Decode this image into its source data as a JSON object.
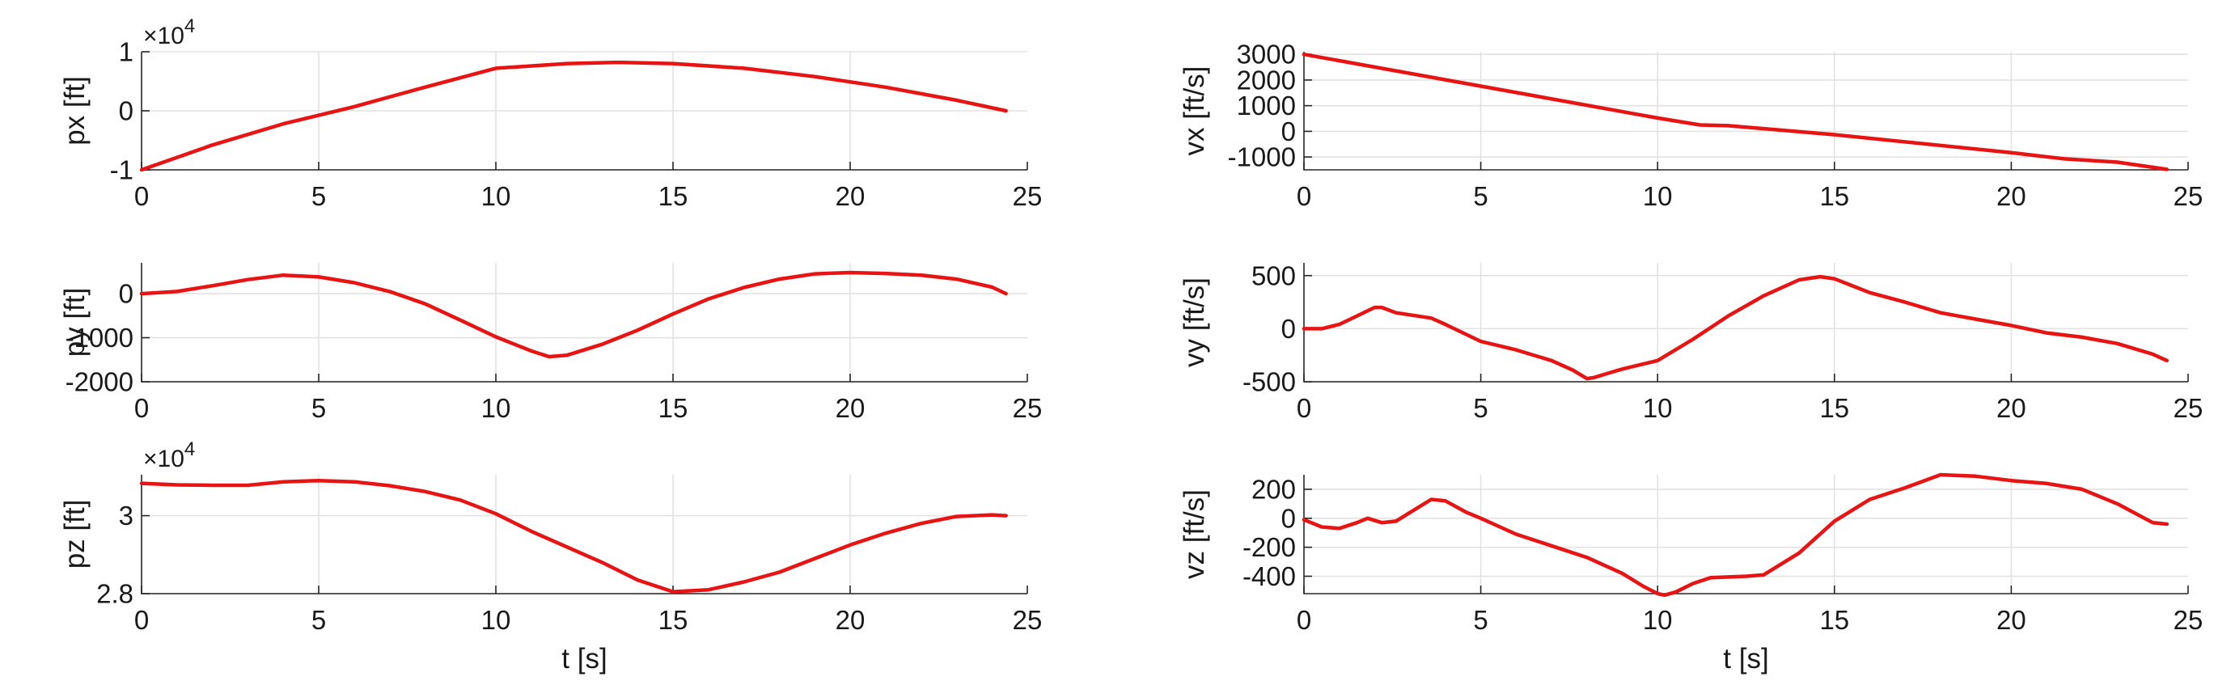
{
  "series_color": "#e81414",
  "chart_data": [
    {
      "type": "line",
      "ylabel": "px [ft]",
      "xlabel": "",
      "y_multiplier": "×10",
      "y_multiplier_exp": "4",
      "xlim": [
        0,
        25
      ],
      "ylim": [
        -1,
        1
      ],
      "xticks": [
        0,
        5,
        10,
        15,
        20,
        25
      ],
      "xtick_labels": [
        "0",
        "5",
        "10",
        "15",
        "20",
        "25"
      ],
      "yticks": [
        -1,
        0,
        1
      ],
      "ytick_labels": [
        "-1",
        "0",
        "1"
      ],
      "grid": true,
      "series": [
        {
          "x": [
            0,
            2,
            4,
            6,
            8,
            10,
            12,
            13.5,
            15,
            17,
            19,
            21,
            23,
            24.4
          ],
          "y": [
            -1,
            -0.58,
            -0.22,
            0.07,
            0.4,
            0.72,
            0.8,
            0.82,
            0.8,
            0.72,
            0.58,
            0.4,
            0.18,
            0
          ]
        }
      ]
    },
    {
      "type": "line",
      "ylabel": "py [ft]",
      "xlabel": "",
      "xlim": [
        0,
        25
      ],
      "ylim": [
        -2000,
        700
      ],
      "xticks": [
        0,
        5,
        10,
        15,
        20,
        25
      ],
      "xtick_labels": [
        "0",
        "5",
        "10",
        "15",
        "20",
        "25"
      ],
      "yticks": [
        -2000,
        -1000,
        0
      ],
      "ytick_labels": [
        "-2000",
        "-1000",
        "0"
      ],
      "grid": true,
      "series": [
        {
          "x": [
            0,
            1,
            2,
            3,
            4,
            5,
            6,
            7,
            8,
            9,
            10,
            11,
            11.5,
            12,
            13,
            14,
            15,
            16,
            17,
            18,
            19,
            20,
            21,
            22,
            23,
            24,
            24.4
          ],
          "y": [
            0,
            50,
            180,
            320,
            420,
            380,
            250,
            50,
            -230,
            -600,
            -980,
            -1300,
            -1430,
            -1400,
            -1150,
            -830,
            -460,
            -120,
            140,
            330,
            450,
            480,
            460,
            420,
            330,
            150,
            0
          ]
        }
      ]
    },
    {
      "type": "line",
      "ylabel": "pz [ft]",
      "xlabel": "t [s]",
      "y_multiplier": "×10",
      "y_multiplier_exp": "4",
      "xlim": [
        0,
        25
      ],
      "ylim": [
        2.8,
        3.105
      ],
      "xticks": [
        0,
        5,
        10,
        15,
        20,
        25
      ],
      "xtick_labels": [
        "0",
        "5",
        "10",
        "15",
        "20",
        "25"
      ],
      "yticks": [
        2.8,
        3
      ],
      "ytick_labels": [
        "2.8",
        "3"
      ],
      "grid": true,
      "series": [
        {
          "x": [
            0,
            1,
            2,
            3,
            4,
            5,
            6,
            7,
            8,
            9,
            10,
            11,
            12,
            13,
            14,
            15,
            16,
            17,
            18,
            19,
            20,
            21,
            22,
            23,
            24,
            24.4
          ],
          "y": [
            3.083,
            3.079,
            3.078,
            3.078,
            3.087,
            3.09,
            3.087,
            3.077,
            3.062,
            3.04,
            3.005,
            2.96,
            2.92,
            2.88,
            2.835,
            2.805,
            2.81,
            2.83,
            2.855,
            2.89,
            2.925,
            2.955,
            2.98,
            2.998,
            3.002,
            3.0
          ]
        }
      ]
    },
    {
      "type": "line",
      "ylabel": "vx [ft/s]",
      "xlabel": "",
      "xlim": [
        0,
        25
      ],
      "ylim": [
        -1500,
        3100
      ],
      "xticks": [
        0,
        5,
        10,
        15,
        20,
        25
      ],
      "xtick_labels": [
        "0",
        "5",
        "10",
        "15",
        "20",
        "25"
      ],
      "yticks": [
        -1000,
        0,
        1000,
        2000,
        3000
      ],
      "ytick_labels": [
        "-1000",
        "0",
        "1000",
        "2000",
        "3000"
      ],
      "grid": true,
      "series": [
        {
          "x": [
            0,
            5,
            10,
            11.2,
            12,
            15,
            20,
            21.5,
            23,
            24.4
          ],
          "y": [
            3000,
            1760,
            520,
            250,
            220,
            -130,
            -830,
            -1070,
            -1200,
            -1480
          ]
        }
      ]
    },
    {
      "type": "line",
      "ylabel": "vy [ft/s]",
      "xlabel": "",
      "xlim": [
        0,
        25
      ],
      "ylim": [
        -500,
        620
      ],
      "xticks": [
        0,
        5,
        10,
        15,
        20,
        25
      ],
      "xtick_labels": [
        "0",
        "5",
        "10",
        "15",
        "20",
        "25"
      ],
      "yticks": [
        -500,
        0,
        500
      ],
      "ytick_labels": [
        "-500",
        "0",
        "500"
      ],
      "grid": true,
      "series": [
        {
          "x": [
            0,
            0.5,
            1,
            1.5,
            2,
            2.2,
            2.6,
            3,
            3.6,
            4,
            5,
            6,
            7,
            7.6,
            8,
            8.2,
            8.6,
            9,
            10,
            11,
            12,
            13,
            14,
            14.6,
            15,
            16,
            17,
            18,
            19,
            20,
            21,
            22,
            23,
            24,
            24.4
          ],
          "y": [
            0,
            0,
            40,
            120,
            200,
            200,
            150,
            130,
            100,
            40,
            -120,
            -200,
            -300,
            -390,
            -470,
            -460,
            -420,
            -380,
            -300,
            -100,
            120,
            310,
            460,
            490,
            470,
            340,
            250,
            150,
            90,
            30,
            -40,
            -80,
            -140,
            -240,
            -300
          ]
        }
      ]
    },
    {
      "type": "line",
      "ylabel": "vz [ft/s]",
      "xlabel": "t [s]",
      "xlim": [
        0,
        25
      ],
      "ylim": [
        -520,
        300
      ],
      "xticks": [
        0,
        5,
        10,
        15,
        20,
        25
      ],
      "xtick_labels": [
        "0",
        "5",
        "10",
        "15",
        "20",
        "25"
      ],
      "yticks": [
        -400,
        -200,
        0,
        200
      ],
      "ytick_labels": [
        "-400",
        "-200",
        "0",
        "200"
      ],
      "grid": true,
      "series": [
        {
          "x": [
            0,
            0.5,
            1,
            1.5,
            1.8,
            2.2,
            2.6,
            3,
            3.6,
            4,
            4.6,
            5,
            6,
            7,
            8,
            9,
            9.6,
            10,
            10.2,
            10.5,
            11,
            11.5,
            12.5,
            13,
            14,
            15,
            16,
            17,
            18,
            19,
            20,
            21,
            22,
            23,
            24,
            24.4
          ],
          "y": [
            -10,
            -60,
            -70,
            -30,
            0,
            -30,
            -20,
            40,
            130,
            120,
            40,
            0,
            -110,
            -190,
            -270,
            -380,
            -470,
            -520,
            -530,
            -510,
            -450,
            -410,
            -400,
            -390,
            -240,
            -20,
            130,
            210,
            300,
            290,
            260,
            240,
            200,
            100,
            -30,
            -40
          ]
        }
      ]
    }
  ]
}
